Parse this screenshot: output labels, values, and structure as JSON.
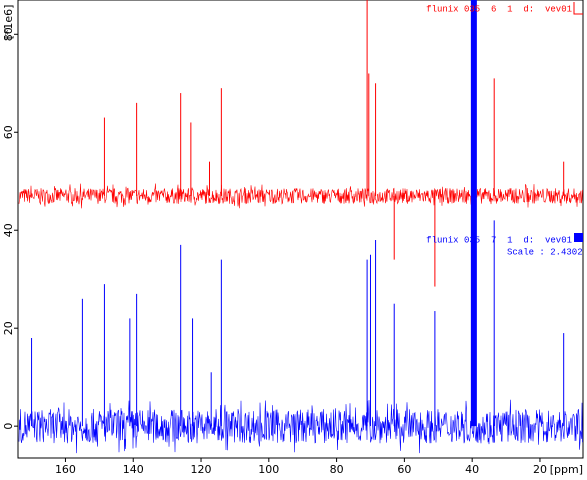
{
  "chart_data": {
    "type": "spectrum",
    "y_label": "[*1e6]",
    "x_label": "[ppm]",
    "xlim": [
      174,
      7.3
    ],
    "ylim": [
      -6.5,
      87
    ],
    "xticks": [
      160,
      140,
      120,
      100,
      80,
      60,
      40,
      20
    ],
    "yticks": [
      0,
      20,
      40,
      60,
      80
    ],
    "annotation": "Scale : 2.4302",
    "series": [
      {
        "name": "flunix 035  6  1  d:  vev01",
        "color": "#ff0000",
        "baseline": 47,
        "noise": 1.6,
        "peaks": {
          "x": [
            148.5,
            139,
            126,
            123,
            117.5,
            114,
            71,
            70.5,
            68.5,
            63,
            51,
            33.5,
            13
          ],
          "values": [
            63,
            66,
            68,
            62,
            54,
            69,
            88,
            72,
            70,
            34,
            28.5,
            71,
            54
          ]
        }
      },
      {
        "name": "flunix 035  7  1  d:  vev01",
        "color": "#0000ff",
        "baseline": 0,
        "noise": 3.5,
        "peaks": {
          "x": [
            170,
            155,
            148.5,
            141,
            139,
            126,
            122.5,
            117,
            114,
            71,
            70,
            68.5,
            63,
            51,
            39.5,
            33.5,
            13
          ],
          "values": [
            18,
            26,
            29,
            22,
            27,
            37,
            22,
            11,
            34,
            34,
            35,
            38,
            25,
            23.5,
            87,
            42,
            19
          ]
        }
      }
    ]
  }
}
